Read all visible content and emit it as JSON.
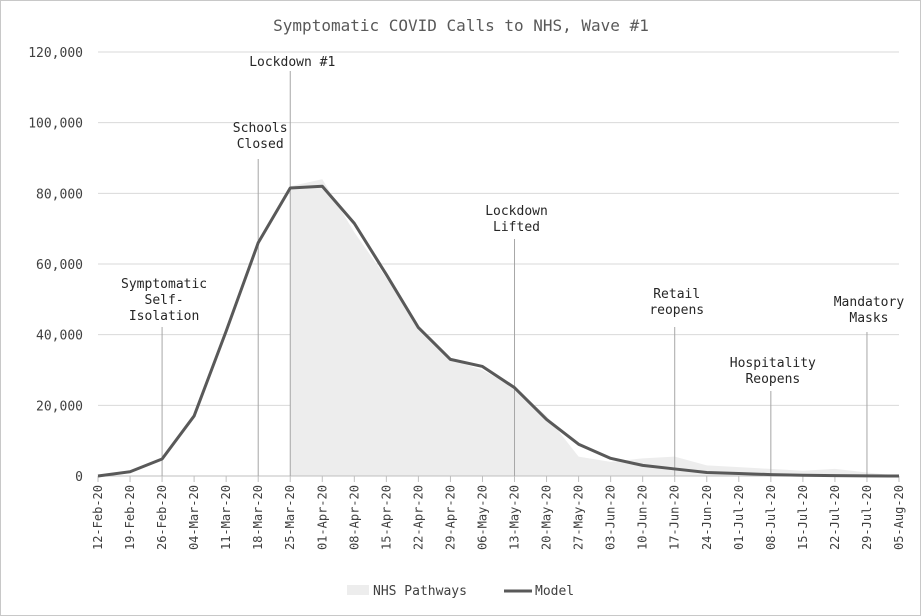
{
  "chart_data": {
    "type": "line",
    "title": "Symptomatic COVID Calls to NHS, Wave #1",
    "xlabel": "",
    "ylabel": "",
    "ylim": [
      0,
      120000
    ],
    "y_ticks": [
      0,
      20000,
      40000,
      60000,
      80000,
      100000,
      120000
    ],
    "y_tick_labels": [
      "0",
      "20,000",
      "40,000",
      "60,000",
      "80,000",
      "100,000",
      "120,000"
    ],
    "grid": true,
    "legend_placement": "bottom",
    "categories": [
      "12-Feb-20",
      "19-Feb-20",
      "26-Feb-20",
      "04-Mar-20",
      "11-Mar-20",
      "18-Mar-20",
      "25-Mar-20",
      "01-Apr-20",
      "08-Apr-20",
      "15-Apr-20",
      "22-Apr-20",
      "29-Apr-20",
      "06-May-20",
      "13-May-20",
      "20-May-20",
      "27-May-20",
      "03-Jun-20",
      "10-Jun-20",
      "17-Jun-20",
      "24-Jun-20",
      "01-Jul-20",
      "08-Jul-20",
      "15-Jul-20",
      "22-Jul-20",
      "29-Jul-20",
      "05-Aug-20"
    ],
    "series": [
      {
        "name": "NHS Pathways",
        "kind": "area",
        "color": "#ededed",
        "start_index": 6,
        "values": [
          0,
          0,
          0,
          0,
          0,
          0,
          82000,
          84000,
          69000,
          56000,
          42000,
          33000,
          30000,
          25000,
          17000,
          5500,
          4000,
          5000,
          5500,
          3000,
          2500,
          2000,
          1500,
          2000,
          1000,
          0
        ]
      },
      {
        "name": "Model",
        "kind": "line",
        "color": "#595959",
        "values": [
          0,
          1200,
          4800,
          17000,
          41000,
          66000,
          81500,
          82000,
          71500,
          57000,
          42000,
          33000,
          31000,
          25000,
          16000,
          9000,
          5000,
          3000,
          2000,
          1000,
          700,
          400,
          200,
          100,
          50,
          0
        ]
      }
    ],
    "annotations": [
      {
        "index": 2,
        "lines": [
          "Symptomatic",
          "Self-",
          "Isolation"
        ]
      },
      {
        "index": 5,
        "lines": [
          "Schools",
          "Closed"
        ]
      },
      {
        "index": 6,
        "lines": [
          "Lockdown #1"
        ]
      },
      {
        "index": 13,
        "lines": [
          "Lockdown",
          "Lifted"
        ]
      },
      {
        "index": 18,
        "lines": [
          "Retail",
          "reopens"
        ]
      },
      {
        "index": 21,
        "lines": [
          "Hospitality",
          "Reopens"
        ]
      },
      {
        "index": 24,
        "lines": [
          "Mandatory",
          "Masks"
        ]
      }
    ]
  }
}
